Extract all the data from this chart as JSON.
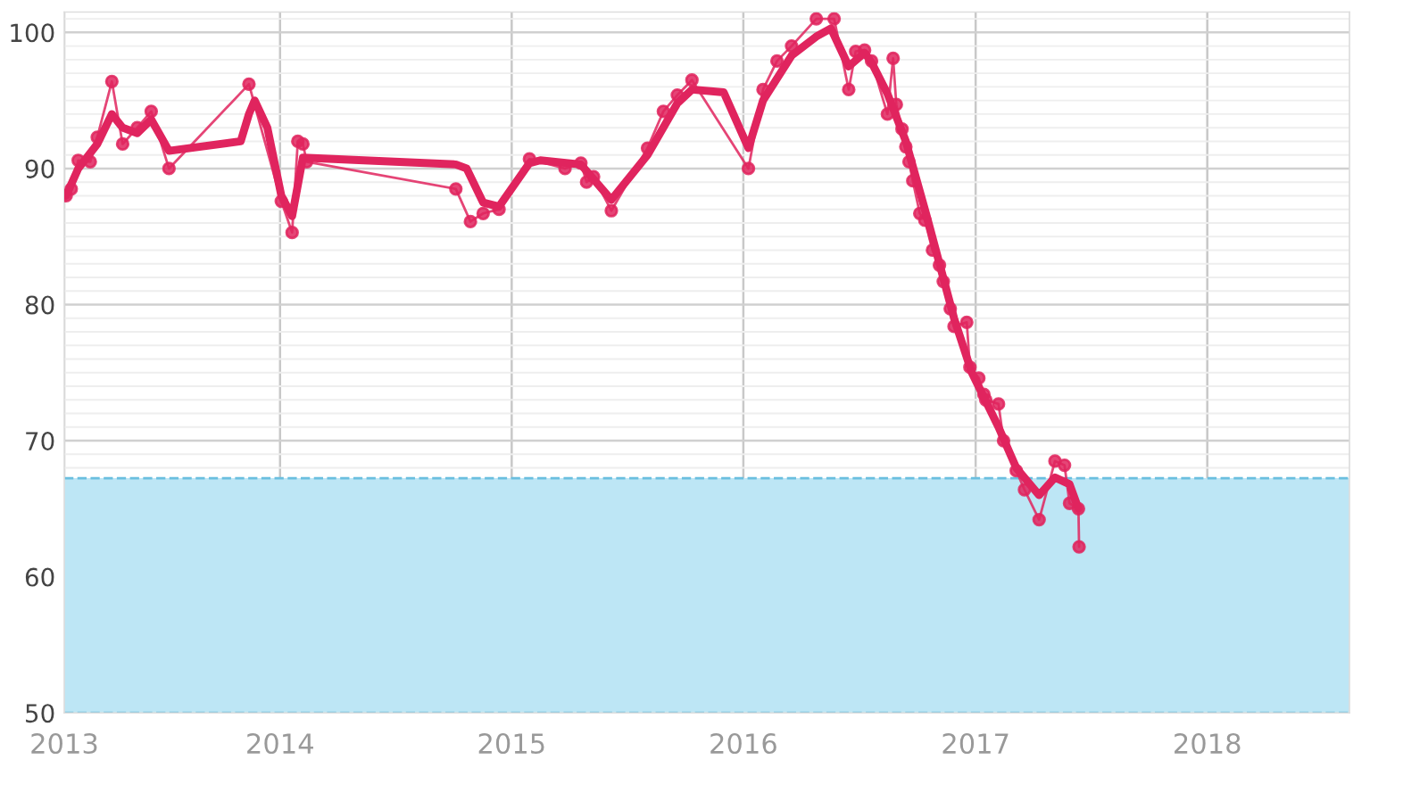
{
  "chart_data": {
    "type": "line",
    "xlim": [
      "2013-01-26",
      "2018-08-13"
    ],
    "xticks": [
      {
        "value": "2013-01-26",
        "label": "2013"
      },
      {
        "value": "2014-01-01",
        "label": "2014"
      },
      {
        "value": "2015-01-01",
        "label": "2015"
      },
      {
        "value": "2016-01-01",
        "label": "2016"
      },
      {
        "value": "2017-01-01",
        "label": "2017"
      },
      {
        "value": "2018-01-01",
        "label": "2018"
      }
    ],
    "ylim": [
      50,
      101.5
    ],
    "yticks": [
      50,
      60,
      70,
      80,
      90,
      100
    ],
    "grid": true,
    "bands": [
      {
        "axis": "y",
        "from": 50,
        "to": 67.25,
        "color": "#bde6f5"
      }
    ],
    "ref_lines": [
      {
        "axis": "y",
        "value": 50,
        "color": "#6bbfdf",
        "line_style": "dashed"
      },
      {
        "axis": "y",
        "value": 67.25,
        "color": "#6bbfdf",
        "line_style": "dashed"
      }
    ],
    "series": [
      {
        "color": "#e0245e",
        "marker": "circle",
        "x": [
          "2013-01-29",
          "2013-02-06",
          "2013-02-17",
          "2013-03-08",
          "2013-03-19",
          "2013-04-11",
          "2013-04-28",
          "2013-05-21",
          "2013-06-12",
          "2013-07-10",
          "2013-11-13",
          "2014-01-03",
          "2014-01-20",
          "2014-01-29",
          "2014-02-06",
          "2014-02-12",
          "2014-10-05",
          "2014-10-28",
          "2014-11-17",
          "2014-12-12",
          "2015-01-29",
          "2015-03-26",
          "2015-04-20",
          "2015-04-29",
          "2015-05-10",
          "2015-06-07",
          "2015-08-03",
          "2015-08-28",
          "2015-09-19",
          "2015-10-12",
          "2016-01-09",
          "2016-02-01",
          "2016-02-23",
          "2016-03-17",
          "2016-04-25",
          "2016-05-23",
          "2016-06-15",
          "2016-06-26",
          "2016-07-10",
          "2016-07-21",
          "2016-08-15",
          "2016-08-24",
          "2016-08-29",
          "2016-09-07",
          "2016-09-13",
          "2016-09-18",
          "2016-09-24",
          "2016-10-05",
          "2016-10-13",
          "2016-10-25",
          "2016-11-05",
          "2016-11-11",
          "2016-11-22",
          "2016-11-28",
          "2016-12-18",
          "2016-12-23",
          "2017-01-06",
          "2017-01-14",
          "2017-01-17",
          "2017-02-06",
          "2017-02-14",
          "2017-03-06",
          "2017-03-19",
          "2017-04-11",
          "2017-05-06",
          "2017-05-21",
          "2017-05-29",
          "2017-06-12",
          "2017-06-13"
        ],
        "values": [
          88.0,
          88.5,
          90.6,
          90.5,
          92.3,
          96.4,
          91.8,
          93.0,
          94.2,
          90.0,
          96.2,
          87.6,
          85.3,
          92.0,
          91.8,
          90.5,
          88.5,
          86.1,
          86.7,
          87.0,
          90.7,
          90.0,
          90.4,
          89.0,
          89.4,
          86.9,
          91.5,
          94.2,
          95.4,
          96.5,
          90.0,
          95.8,
          97.9,
          99.0,
          101.0,
          101.0,
          95.8,
          98.6,
          98.7,
          97.9,
          94.0,
          98.1,
          94.7,
          92.9,
          91.6,
          90.5,
          89.1,
          86.7,
          86.2,
          84.0,
          82.9,
          81.7,
          79.7,
          78.4,
          78.7,
          75.4,
          74.6,
          73.4,
          73.0,
          72.7,
          70.0,
          67.8,
          66.4,
          64.2,
          68.5,
          68.2,
          65.4,
          65.0,
          62.2
        ]
      },
      {
        "color": "#e0245e",
        "marker": "none",
        "x": [
          "2013-01-29",
          "2013-02-17",
          "2013-03-19",
          "2013-04-11",
          "2013-04-28",
          "2013-05-21",
          "2013-06-12",
          "2013-07-10",
          "2013-10-31",
          "2013-11-13",
          "2013-11-22",
          "2013-12-12",
          "2014-01-03",
          "2014-01-20",
          "2014-02-06",
          "2014-10-05",
          "2014-10-22",
          "2014-11-17",
          "2014-12-12",
          "2015-01-29",
          "2015-02-15",
          "2015-04-20",
          "2015-06-07",
          "2015-08-03",
          "2015-09-19",
          "2015-10-12",
          "2015-12-01",
          "2016-01-09",
          "2016-02-01",
          "2016-03-17",
          "2016-04-25",
          "2016-05-18",
          "2016-06-15",
          "2016-07-10",
          "2016-07-21",
          "2016-08-15",
          "2016-09-13",
          "2016-10-16",
          "2016-11-28",
          "2016-12-26",
          "2017-02-06",
          "2017-03-06",
          "2017-04-11",
          "2017-05-06",
          "2017-05-29",
          "2017-06-12"
        ],
        "values": [
          88.0,
          90.0,
          91.8,
          94.0,
          93.0,
          92.6,
          93.6,
          91.3,
          92.0,
          94.0,
          95.0,
          93.0,
          88.0,
          86.5,
          90.8,
          90.3,
          90.0,
          87.5,
          87.2,
          90.4,
          90.6,
          90.3,
          87.7,
          91.0,
          94.8,
          95.8,
          95.6,
          91.5,
          95.0,
          98.3,
          99.7,
          100.3,
          97.5,
          98.5,
          97.8,
          95.5,
          92.0,
          86.5,
          79.0,
          75.0,
          71.0,
          68.0,
          66.0,
          67.3,
          66.8,
          65.0
        ]
      }
    ]
  }
}
